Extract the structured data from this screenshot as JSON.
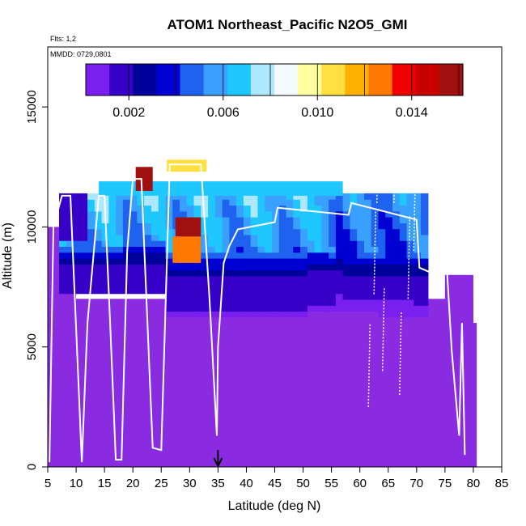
{
  "chart_data": {
    "type": "heatmap",
    "title": "ATOM1 Northeast_Pacific N2O5_GMI",
    "subtitle_flights": "Flts: 1,2",
    "subtitle_dates": "MMDD: 0729,0801",
    "xlabel": "Latitude (deg N)",
    "ylabel": "Altitude (m)",
    "xlim": [
      5,
      85
    ],
    "ylim": [
      0,
      17500
    ],
    "x_ticks": [
      "5",
      "10",
      "15",
      "20",
      "25",
      "30",
      "35",
      "40",
      "45",
      "50",
      "55",
      "60",
      "65",
      "70",
      "75",
      "80",
      "85"
    ],
    "y_ticks": [
      "0",
      "5000",
      "10000",
      "15000"
    ],
    "colorbar": {
      "range": [
        0,
        0.016
      ],
      "ticks": [
        "0.002",
        "0.006",
        "0.010",
        "0.014"
      ],
      "colors": [
        "#7b1ff0",
        "#3700c8",
        "#00009a",
        "#0000d2",
        "#1f62f0",
        "#3aa0ff",
        "#1ec8ff",
        "#aee8ff",
        "#f4fbff",
        "#ffffa0",
        "#ffe040",
        "#ffb000",
        "#ff7800",
        "#f00000",
        "#c80000",
        "#a01010"
      ]
    },
    "marker_latitude": 35,
    "colors": {
      "background_low": "#8a2be2",
      "track": "#ffffff"
    },
    "cells": [
      {
        "lat": 5,
        "alt_max": 10000,
        "value": 0.0001
      },
      {
        "lat": 10,
        "alt_max": 7000,
        "value": 0.0001
      },
      {
        "lat": 15,
        "alt_max": 7000,
        "value": 0.0001
      },
      {
        "lat": 20,
        "alt_max": 7000,
        "value": 0.0001
      },
      {
        "lat": 25,
        "alt_max": 6500,
        "value": 0.0001
      },
      {
        "lat": 30,
        "alt_max": 6000,
        "value": 0.0001
      },
      {
        "lat": 35,
        "alt_max": 6000,
        "value": 0.0001
      },
      {
        "lat": 40,
        "alt_max": 6000,
        "value": 0.0001
      },
      {
        "lat": 45,
        "alt_max": 6500,
        "value": 0.0001
      },
      {
        "lat": 50,
        "alt_max": 6500,
        "value": 0.0001
      },
      {
        "lat": 55,
        "alt_max": 6500,
        "value": 0.0001
      },
      {
        "lat": 60,
        "alt_max": 6500,
        "value": 0.0001
      },
      {
        "lat": 65,
        "alt_max": 7000,
        "value": 0.0001
      },
      {
        "lat": 70,
        "alt_max": 7000,
        "value": 0.0001
      },
      {
        "lat": 75,
        "alt_max": 8000,
        "value": 0.0001
      },
      {
        "lat": 80,
        "alt_max": 6000,
        "value": 0.0001
      }
    ],
    "upper_band": {
      "lat_range": [
        7,
        72
      ],
      "alt_range": [
        6000,
        11400
      ],
      "description_values": {
        "low_band": 0.0015,
        "mid_band": 0.005,
        "top_band": 0.006
      }
    },
    "hotspots": [
      {
        "lat_range": [
          20.5,
          23.5
        ],
        "alt_range": [
          11500,
          12500
        ],
        "value": 0.015
      },
      {
        "lat_range": [
          27.5,
          32
        ],
        "alt_range": [
          9600,
          10400
        ],
        "value": 0.015
      },
      {
        "lat_range": [
          27,
          32
        ],
        "alt_range": [
          8500,
          9600
        ],
        "value": 0.012
      },
      {
        "lat_range": [
          26,
          33
        ],
        "alt_range": [
          12300,
          12800
        ],
        "value": 0.01
      }
    ]
  }
}
